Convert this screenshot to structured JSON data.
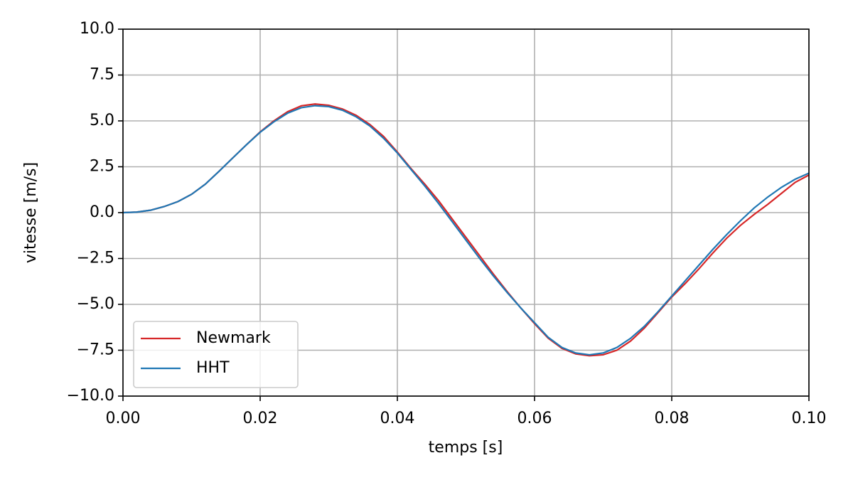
{
  "chart_data": {
    "type": "line",
    "xlabel": "temps [s]",
    "ylabel": "vitesse [m/s]",
    "x": [
      0,
      0.002,
      0.004,
      0.006,
      0.008,
      0.01,
      0.012,
      0.014,
      0.016,
      0.018,
      0.02,
      0.022,
      0.024,
      0.026,
      0.028,
      0.03,
      0.032,
      0.034,
      0.036,
      0.038,
      0.04,
      0.042,
      0.044,
      0.046,
      0.048,
      0.05,
      0.052,
      0.054,
      0.056,
      0.058,
      0.06,
      0.062,
      0.064,
      0.066,
      0.068,
      0.07,
      0.072,
      0.074,
      0.076,
      0.078,
      0.08,
      0.082,
      0.084,
      0.086,
      0.088,
      0.09,
      0.092,
      0.094,
      0.096,
      0.098,
      0.1
    ],
    "series": [
      {
        "name": "Newmark",
        "color": "#d62728",
        "values": [
          0,
          0.03,
          0.13,
          0.33,
          0.6,
          1.0,
          1.55,
          2.25,
          2.98,
          3.7,
          4.4,
          5.0,
          5.5,
          5.82,
          5.92,
          5.85,
          5.65,
          5.3,
          4.8,
          4.15,
          3.3,
          2.4,
          1.55,
          0.65,
          -0.35,
          -1.35,
          -2.35,
          -3.35,
          -4.3,
          -5.2,
          -6.05,
          -6.85,
          -7.4,
          -7.7,
          -7.8,
          -7.75,
          -7.5,
          -7.0,
          -6.3,
          -5.45,
          -4.6,
          -3.85,
          -3.05,
          -2.2,
          -1.4,
          -0.7,
          -0.1,
          0.45,
          1.05,
          1.65,
          2.05
        ]
      },
      {
        "name": "HHT",
        "color": "#1f77b4",
        "values": [
          0,
          0.03,
          0.13,
          0.33,
          0.6,
          1.0,
          1.55,
          2.25,
          2.98,
          3.7,
          4.38,
          4.95,
          5.42,
          5.72,
          5.83,
          5.78,
          5.58,
          5.22,
          4.72,
          4.05,
          3.25,
          2.35,
          1.45,
          0.5,
          -0.5,
          -1.5,
          -2.5,
          -3.45,
          -4.35,
          -5.2,
          -6.0,
          -6.8,
          -7.35,
          -7.65,
          -7.75,
          -7.65,
          -7.35,
          -6.85,
          -6.2,
          -5.4,
          -4.55,
          -3.7,
          -2.85,
          -2.0,
          -1.2,
          -0.45,
          0.25,
          0.85,
          1.38,
          1.82,
          2.15
        ]
      }
    ],
    "xlim": [
      0,
      0.1
    ],
    "xticks": [
      {
        "value": 0,
        "label": "0.00"
      },
      0.02,
      0.04,
      0.06,
      0.08,
      {
        "value": 0.1,
        "label": "0.10"
      }
    ],
    "ylim": [
      -10,
      10
    ],
    "yticks": [
      {
        "value": -10,
        "label": "−10.0"
      },
      {
        "value": -7.5,
        "label": "−7.5"
      },
      {
        "value": -5,
        "label": "−5.0"
      },
      {
        "value": -2.5,
        "label": "−2.5"
      },
      {
        "value": 0,
        "label": "0.0"
      },
      2.5,
      {
        "value": 5,
        "label": "5.0"
      },
      7.5,
      {
        "value": 10,
        "label": "10.0"
      }
    ],
    "grid": true,
    "legend": "lower left"
  }
}
